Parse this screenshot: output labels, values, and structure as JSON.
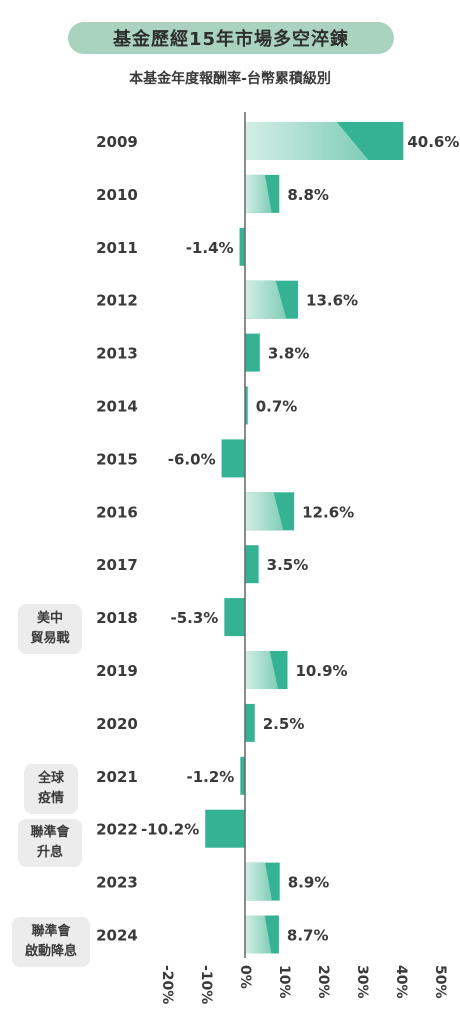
{
  "header": {
    "title": "基金歷經15年市場多空淬鍊",
    "subtitle": "本基金年度報酬率-台幣累積級別"
  },
  "annotations": [
    {
      "year": "2018",
      "lines": [
        "美中",
        "貿易戰"
      ]
    },
    {
      "year": "2021",
      "lines": [
        "全球",
        "疫情"
      ]
    },
    {
      "year": "2022",
      "lines": [
        "聯準會",
        "升息"
      ]
    },
    {
      "year": "2024",
      "lines": [
        "聯準會",
        "啟動降息"
      ]
    }
  ],
  "chart_data": {
    "type": "bar",
    "orientation": "horizontal",
    "title": "本基金年度報酬率-台幣累積級別",
    "categories": [
      "2009",
      "2010",
      "2011",
      "2012",
      "2013",
      "2014",
      "2015",
      "2016",
      "2017",
      "2018",
      "2019",
      "2020",
      "2021",
      "2022",
      "2023",
      "2024"
    ],
    "values": [
      40.6,
      8.8,
      -1.4,
      13.6,
      3.8,
      0.7,
      -6.0,
      12.6,
      3.5,
      -5.3,
      10.9,
      2.5,
      -1.2,
      -10.2,
      8.9,
      8.7
    ],
    "value_labels": [
      "40.6%",
      "8.8%",
      "-1.4%",
      "13.6%",
      "3.8%",
      "0.7%",
      "-6.0%",
      "12.6%",
      "3.5%",
      "-5.3%",
      "10.9%",
      "2.5%",
      "-1.2%",
      "-10.2%",
      "8.9%",
      "8.7%"
    ],
    "xlim": [
      -20,
      50
    ],
    "x_ticks": [
      -20,
      -10,
      0,
      10,
      20,
      30,
      40,
      50
    ],
    "x_tick_labels": [
      "-20%",
      "-10%",
      "0%",
      "10%",
      "20%",
      "30%",
      "40%",
      "50%"
    ],
    "grid": false,
    "colors": {
      "bar": "#35b293",
      "highlight": "#bfe6da",
      "axis": "#666666"
    }
  }
}
